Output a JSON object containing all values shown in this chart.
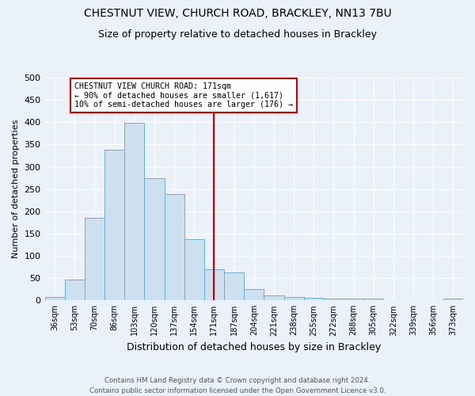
{
  "title": "CHESTNUT VIEW, CHURCH ROAD, BRACKLEY, NN13 7BU",
  "subtitle": "Size of property relative to detached houses in Brackley",
  "xlabel": "Distribution of detached houses by size in Brackley",
  "ylabel": "Number of detached properties",
  "categories": [
    "36sqm",
    "53sqm",
    "70sqm",
    "86sqm",
    "103sqm",
    "120sqm",
    "137sqm",
    "154sqm",
    "171sqm",
    "187sqm",
    "204sqm",
    "221sqm",
    "238sqm",
    "255sqm",
    "272sqm",
    "288sqm",
    "305sqm",
    "322sqm",
    "339sqm",
    "356sqm",
    "373sqm"
  ],
  "bar_values": [
    8,
    46,
    185,
    338,
    398,
    275,
    238,
    137,
    70,
    63,
    25,
    12,
    8,
    5,
    4,
    4,
    4,
    0,
    0,
    0,
    4
  ],
  "bar_color": "#cce0f0",
  "bar_edge_color": "#6aaed6",
  "vline_x_idx": 8,
  "vline_color": "#cc0000",
  "annotation_line1": "CHESTNUT VIEW CHURCH ROAD: 171sqm",
  "annotation_line2": "← 90% of detached houses are smaller (1,617)",
  "annotation_line3": "10% of semi-detached houses are larger (176) →",
  "annotation_box_color": "#ffffff",
  "annotation_box_edge": "#cc0000",
  "ylim": [
    0,
    500
  ],
  "yticks": [
    0,
    50,
    100,
    150,
    200,
    250,
    300,
    350,
    400,
    450,
    500
  ],
  "footer_line1": "Contains HM Land Registry data © Crown copyright and database right 2024.",
  "footer_line2": "Contains public sector information licensed under the Open Government Licence v3.0.",
  "bg_color": "#eaf1f8",
  "plot_bg_color": "#eaf1f8",
  "grid_color": "#ffffff",
  "title_fontsize": 10,
  "subtitle_fontsize": 9,
  "ylabel_fontsize": 8,
  "xlabel_fontsize": 9
}
